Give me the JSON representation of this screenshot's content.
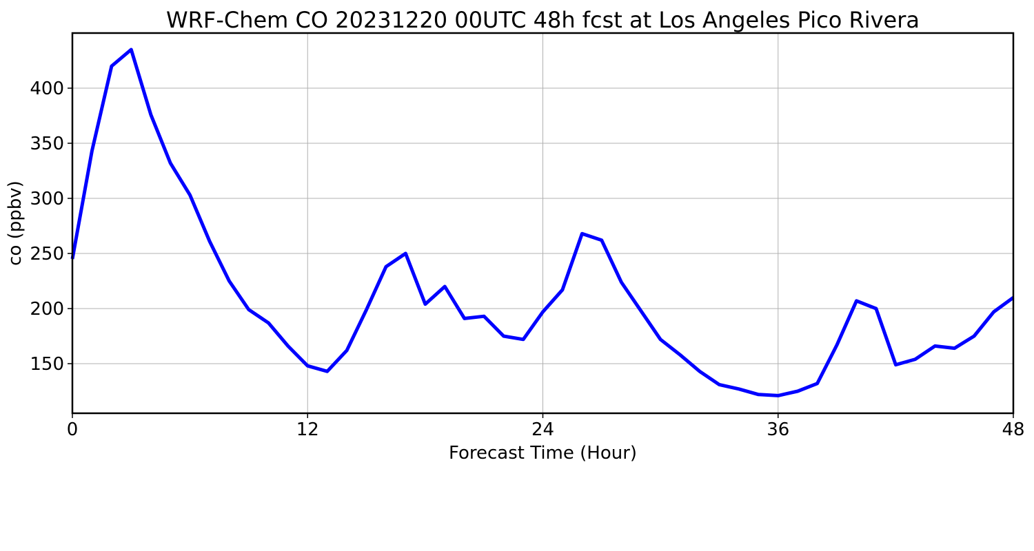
{
  "chart_data": {
    "type": "line",
    "title": "WRF-Chem CO  20231220 00UTC 48h fcst at Los Angeles Pico Rivera",
    "xlabel": "Forecast Time (Hour)",
    "ylabel": "co  (ppbv)",
    "xlim": [
      0,
      48
    ],
    "ylim": [
      105,
      450
    ],
    "xticks": [
      0,
      12,
      24,
      36,
      48
    ],
    "yticks": [
      150,
      200,
      250,
      300,
      350,
      400
    ],
    "grid": true,
    "series": [
      {
        "color": "#0000ff",
        "x": [
          0,
          1,
          2,
          3,
          4,
          5,
          6,
          7,
          8,
          9,
          10,
          11,
          12,
          13,
          14,
          15,
          16,
          17,
          18,
          19,
          20,
          21,
          22,
          23,
          24,
          25,
          26,
          27,
          28,
          29,
          30,
          31,
          32,
          33,
          34,
          35,
          36,
          37,
          38,
          39,
          40,
          41,
          42,
          43,
          44,
          45,
          46,
          47,
          48
        ],
        "values": [
          245,
          343,
          420,
          435,
          376,
          332,
          303,
          261,
          225,
          199,
          187,
          166,
          148,
          143,
          162,
          199,
          238,
          250,
          204,
          220,
          191,
          193,
          175,
          172,
          197,
          217,
          268,
          262,
          224,
          198,
          172,
          158,
          143,
          131,
          127,
          122,
          121,
          125,
          132,
          167,
          207,
          200,
          149,
          154,
          166,
          164,
          175,
          197,
          210
        ]
      }
    ]
  }
}
